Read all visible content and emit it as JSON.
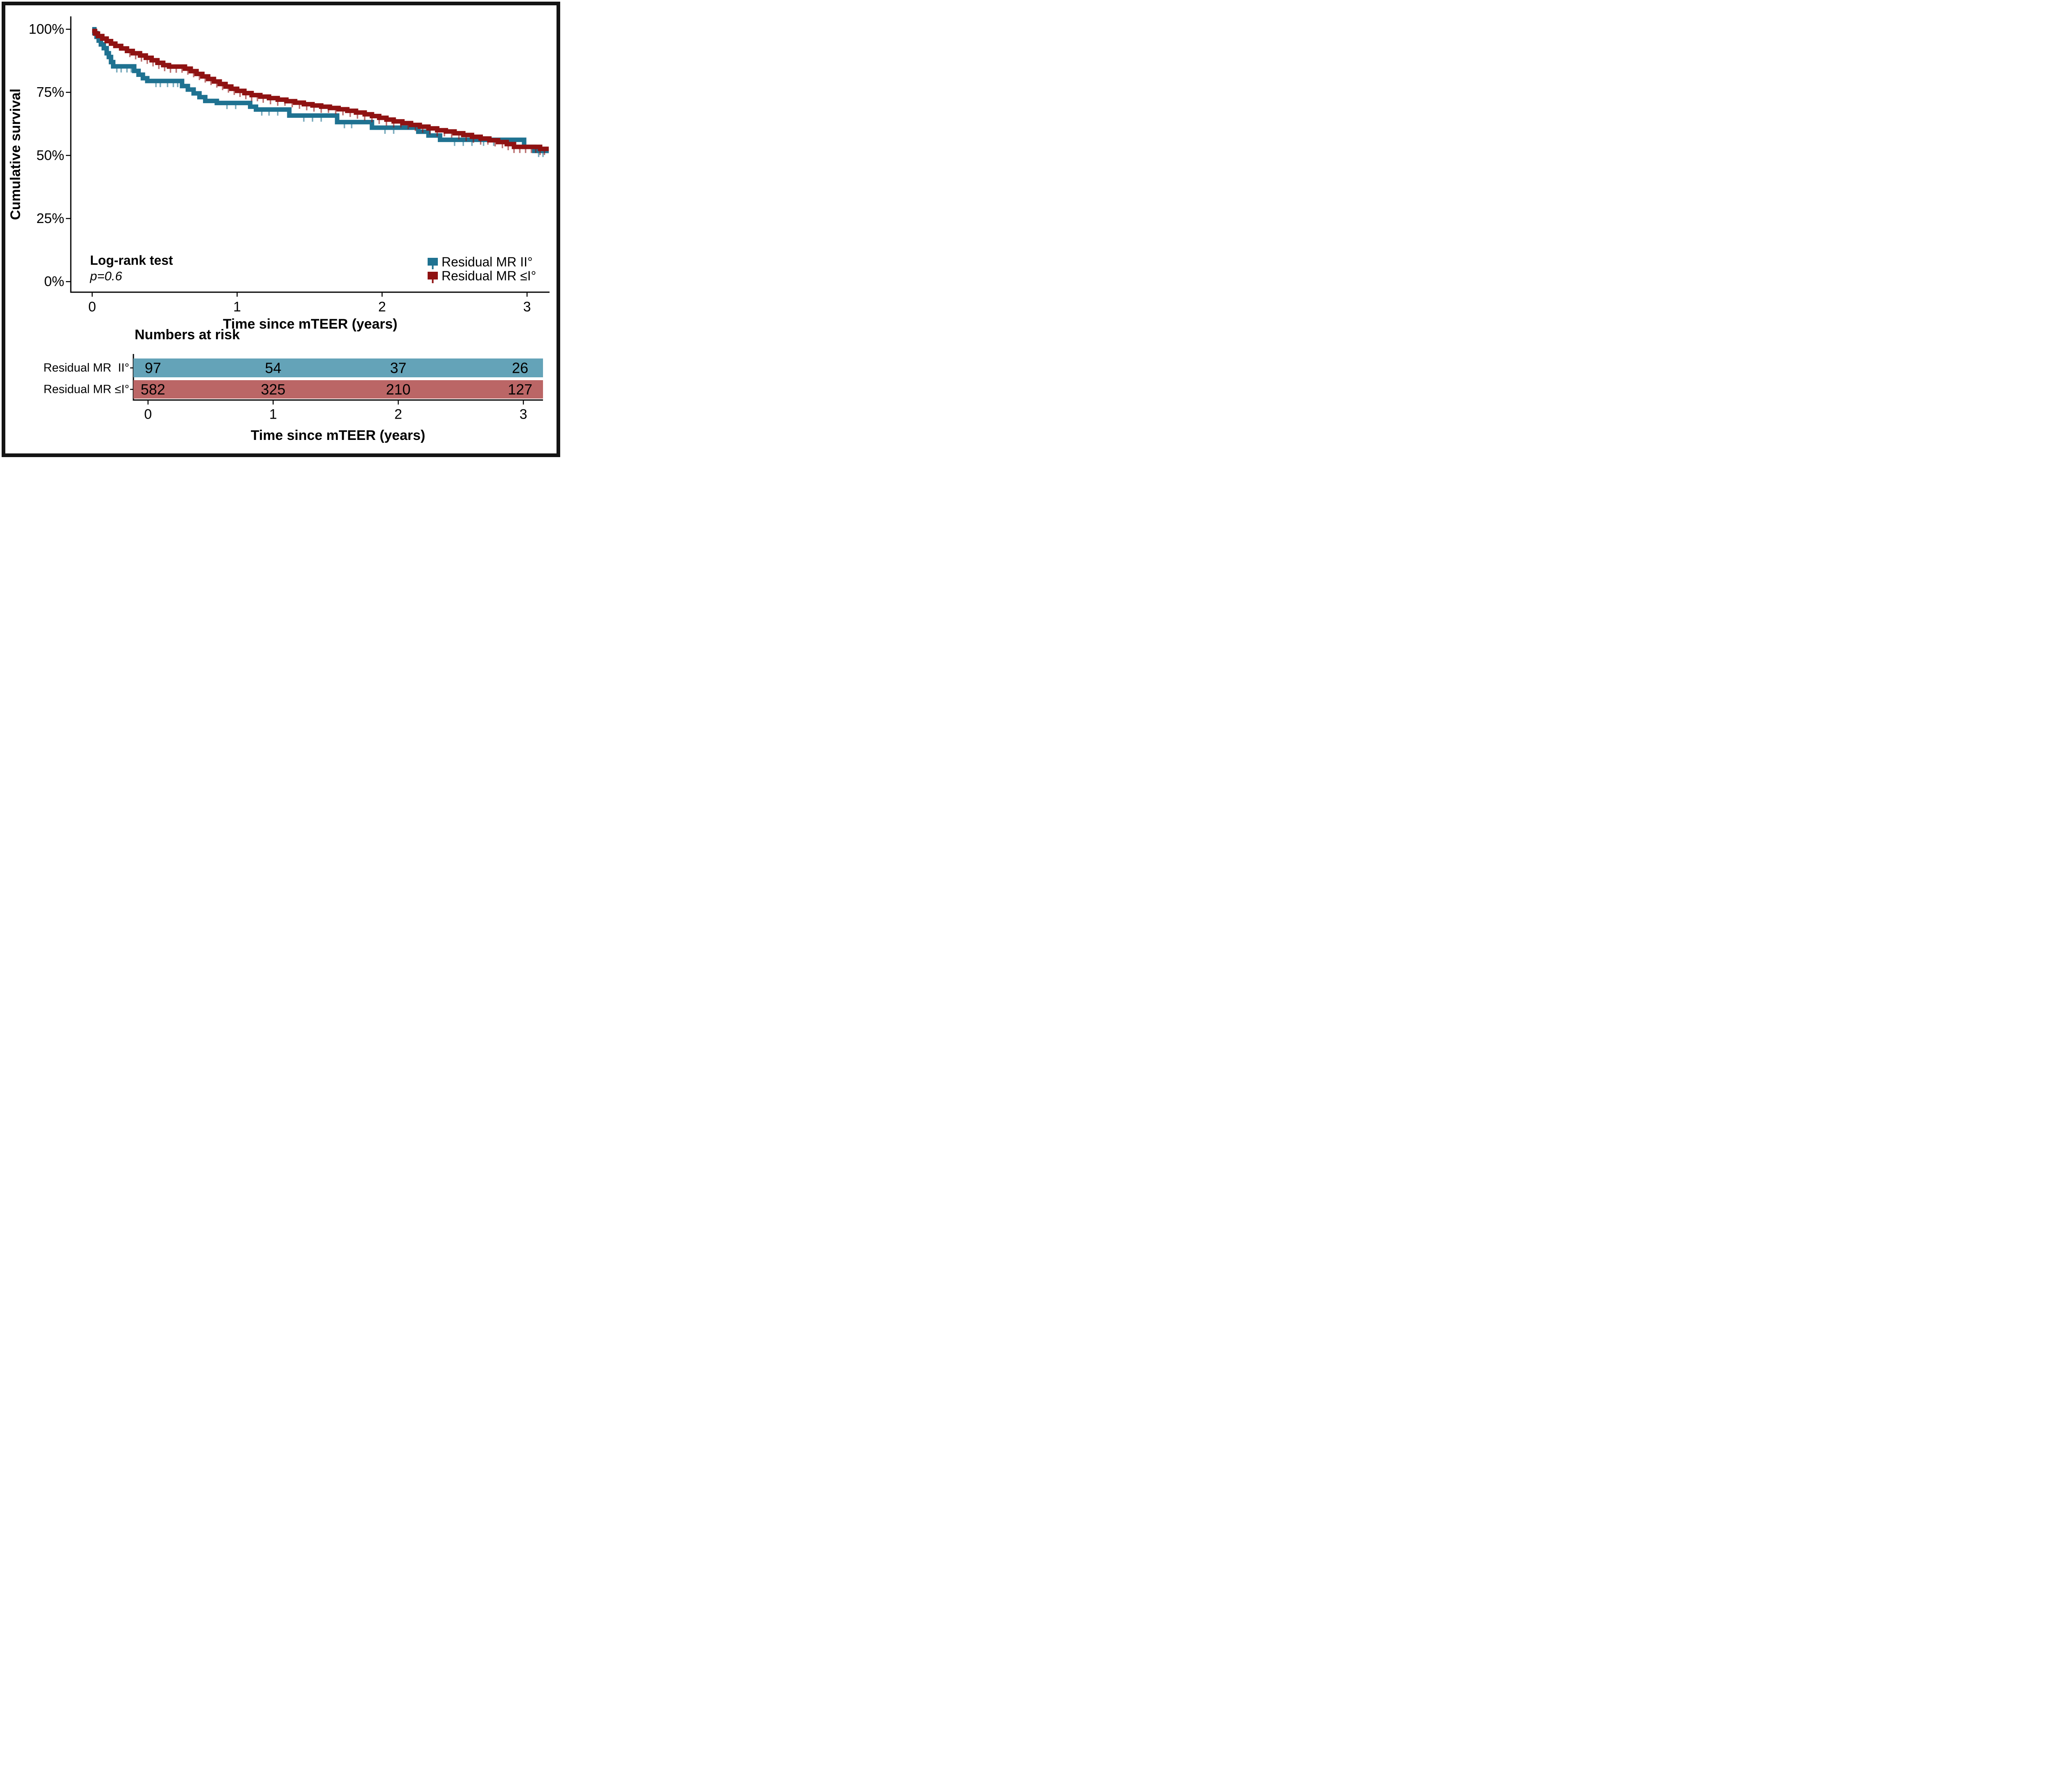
{
  "chart_data": {
    "type": "line",
    "subtype": "kaplan-meier-step",
    "title": "",
    "xlabel": "Time since mTEER (years)",
    "ylabel": "Cumulative survival",
    "xlim": [
      0,
      3.15
    ],
    "ylim": [
      0,
      100
    ],
    "grid": false,
    "legend_position": "inside-bottom-right",
    "x_ticks": [
      0,
      1,
      2,
      3
    ],
    "y_ticks": [
      {
        "label": "100%",
        "value": 100
      },
      {
        "label": "75%",
        "value": 75
      },
      {
        "label": "50%",
        "value": 50
      },
      {
        "label": "25%",
        "value": 25
      },
      {
        "label": "0%",
        "value": 0
      }
    ],
    "series": [
      {
        "name": "Residual MR II°",
        "color": "#1f7291",
        "points": [
          [
            0,
            100
          ],
          [
            0.015,
            98.5
          ],
          [
            0.03,
            97
          ],
          [
            0.045,
            95.5
          ],
          [
            0.06,
            94
          ],
          [
            0.08,
            92.5
          ],
          [
            0.1,
            90.5
          ],
          [
            0.115,
            89
          ],
          [
            0.13,
            87
          ],
          [
            0.145,
            85.3
          ],
          [
            0.29,
            83.5
          ],
          [
            0.32,
            82
          ],
          [
            0.35,
            80.6
          ],
          [
            0.38,
            79.5
          ],
          [
            0.62,
            77.5
          ],
          [
            0.66,
            76.1
          ],
          [
            0.7,
            74.6
          ],
          [
            0.74,
            73.1
          ],
          [
            0.78,
            71.6
          ],
          [
            0.86,
            70.8
          ],
          [
            1.09,
            69.3
          ],
          [
            1.13,
            68.2
          ],
          [
            1.36,
            65.8
          ],
          [
            1.69,
            63.2
          ],
          [
            1.93,
            61
          ],
          [
            2.25,
            59.4
          ],
          [
            2.32,
            57.9
          ],
          [
            2.4,
            56.2
          ],
          [
            2.98,
            53.4
          ],
          [
            3.05,
            51.8
          ],
          [
            3.15,
            51.8
          ]
        ],
        "censor_times": [
          0.17,
          0.2,
          0.24,
          0.27,
          0.44,
          0.47,
          0.52,
          0.56,
          0.59,
          0.93,
          0.99,
          1.17,
          1.22,
          1.28,
          1.46,
          1.52,
          1.58,
          1.74,
          1.79,
          2.02,
          2.08,
          2.5,
          2.56,
          2.62,
          2.7,
          2.77,
          3.08,
          3.11
        ]
      },
      {
        "name": "Residual MR ≤I°",
        "color": "#8f1212",
        "points": [
          [
            0,
            99.3
          ],
          [
            0.02,
            98.3
          ],
          [
            0.04,
            97.3
          ],
          [
            0.07,
            96.3
          ],
          [
            0.1,
            95.3
          ],
          [
            0.13,
            94.3
          ],
          [
            0.16,
            93.4
          ],
          [
            0.2,
            92.4
          ],
          [
            0.24,
            91.4
          ],
          [
            0.28,
            90.5
          ],
          [
            0.33,
            89.6
          ],
          [
            0.37,
            88.7
          ],
          [
            0.41,
            87.7
          ],
          [
            0.45,
            86.7
          ],
          [
            0.49,
            85.8
          ],
          [
            0.53,
            85.2
          ],
          [
            0.64,
            84.4
          ],
          [
            0.68,
            83.4
          ],
          [
            0.72,
            82.3
          ],
          [
            0.76,
            81.3
          ],
          [
            0.8,
            80.3
          ],
          [
            0.84,
            79.3
          ],
          [
            0.88,
            78.3
          ],
          [
            0.92,
            77.3
          ],
          [
            0.96,
            76.4
          ],
          [
            1,
            75.6
          ],
          [
            1.05,
            74.7
          ],
          [
            1.1,
            73.9
          ],
          [
            1.16,
            73.3
          ],
          [
            1.22,
            72.7
          ],
          [
            1.28,
            72.1
          ],
          [
            1.34,
            71.5
          ],
          [
            1.4,
            70.9
          ],
          [
            1.46,
            70.3
          ],
          [
            1.52,
            69.8
          ],
          [
            1.58,
            69.3
          ],
          [
            1.64,
            68.8
          ],
          [
            1.7,
            68.3
          ],
          [
            1.76,
            67.7
          ],
          [
            1.82,
            67
          ],
          [
            1.88,
            66.3
          ],
          [
            1.93,
            65.6
          ],
          [
            1.98,
            64.9
          ],
          [
            2.03,
            64.2
          ],
          [
            2.08,
            63.5
          ],
          [
            2.14,
            62.8
          ],
          [
            2.2,
            62.1
          ],
          [
            2.26,
            61.4
          ],
          [
            2.32,
            60.7
          ],
          [
            2.38,
            60
          ],
          [
            2.44,
            59.5
          ],
          [
            2.5,
            58.8
          ],
          [
            2.56,
            58.1
          ],
          [
            2.62,
            57.4
          ],
          [
            2.68,
            56.7
          ],
          [
            2.74,
            56
          ],
          [
            2.8,
            55.3
          ],
          [
            2.86,
            54.5
          ],
          [
            2.91,
            53.4
          ],
          [
            3.09,
            52.6
          ],
          [
            3.15,
            52.6
          ]
        ],
        "censor_times": [
          0.26,
          0.3,
          0.34,
          0.38,
          0.42,
          0.46,
          0.5,
          0.54,
          0.58,
          0.62,
          0.66,
          0.7,
          0.74,
          0.78,
          0.82,
          0.86,
          0.9,
          0.94,
          0.98,
          1.02,
          1.06,
          1.1,
          1.14,
          1.18,
          1.23,
          1.28,
          1.33,
          1.38,
          1.43,
          1.48,
          1.53,
          1.58,
          1.63,
          1.68,
          1.73,
          1.78,
          1.83,
          1.88,
          1.93,
          1.98,
          2.03,
          2.08,
          2.13,
          2.18,
          2.23,
          2.28,
          2.33,
          2.38,
          2.43,
          2.48,
          2.53,
          2.58,
          2.63,
          2.68,
          2.73,
          2.78,
          2.83,
          2.87,
          2.91,
          2.95,
          2.99,
          3.03,
          3.06,
          3.09,
          3.12
        ]
      }
    ]
  },
  "annotation": {
    "line1": "Log-rank test",
    "line2": "p=0.6"
  },
  "legend_items": [
    {
      "label": "Residual MR II°",
      "color": "#1f7291"
    },
    {
      "label": "Residual MR ≤I°",
      "color": "#8f1212"
    }
  ],
  "risk_table": {
    "title": "Numbers at risk",
    "xlabel": "Time since mTEER (years)",
    "x_ticks": [
      "0",
      "1",
      "2",
      "3"
    ],
    "rows": [
      {
        "label": "Residual MR  II°",
        "bar_color": "#64a3b8",
        "text_color": "#17505f",
        "values": [
          "97",
          "54",
          "37",
          "26"
        ]
      },
      {
        "label": "Residual MR ≤I°",
        "bar_color": "#bb6666",
        "text_color": "#701010",
        "values": [
          "582",
          "325",
          "210",
          "127"
        ]
      }
    ]
  }
}
